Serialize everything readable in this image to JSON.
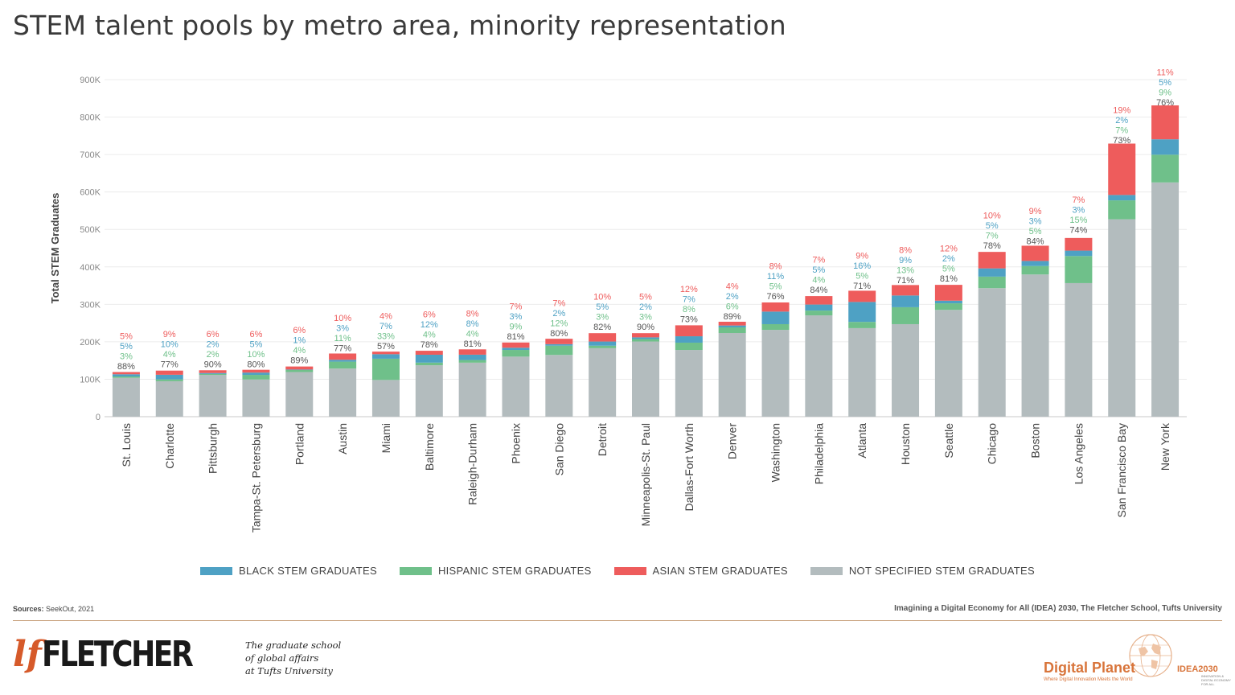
{
  "title": "STEM talent pools by metro area, minority representation",
  "legend": [
    {
      "label": "BLACK STEM GRADUATES",
      "color": "#4ea1c4"
    },
    {
      "label": "HISPANIC STEM GRADUATES",
      "color": "#6fc08a"
    },
    {
      "label": "ASIAN STEM GRADUATES",
      "color": "#ee5c5c"
    },
    {
      "label": "NOT SPECIFIED STEM GRADUATES",
      "color": "#b3bcbe"
    }
  ],
  "footer": {
    "sources_label": "Sources:",
    "sources_text": "SeekOut, 2021",
    "credit": "Imagining a Digital Economy for All (IDEA) 2030, The Fletcher School, Tufts University",
    "fletcher_mark": "lf",
    "fletcher_name": "FLETCHER",
    "tagline_1": "The graduate school",
    "tagline_2": "of global affairs",
    "tagline_3": "at Tufts University",
    "digital_planet": "Digital Planet",
    "digital_planet_sub": "Where Digital Innovation Meets the World",
    "idea_prefix": "IDEA",
    "idea_year": "2030",
    "idea_sub": "INNOVATION & DIGITAL ECONOMY FOR ALL"
  },
  "chart_data": {
    "type": "bar",
    "stacked": true,
    "ylabel": "Total STEM Graduates",
    "xlabel": "",
    "ylim": [
      0,
      900000
    ],
    "yticks": [
      0,
      100000,
      200000,
      300000,
      400000,
      500000,
      600000,
      700000,
      800000,
      900000
    ],
    "ytick_labels": [
      "0",
      "100K",
      "200K",
      "300K",
      "400K",
      "500K",
      "600K",
      "700K",
      "800K",
      "900K"
    ],
    "grid": true,
    "legend_position": "bottom",
    "categories": [
      "St. Louis",
      "Charlotte",
      "Pittsburgh",
      "Tampa-St. Petersburg",
      "Portland",
      "Austin",
      "Miami",
      "Baltimore",
      "Raleigh-Durham",
      "Phoenix",
      "San Diego",
      "Detroit",
      "Minneapolis-St. Paul",
      "Dallas-Fort Worth",
      "Denver",
      "Washington",
      "Philadelphia",
      "Atlanta",
      "Houston",
      "Seattle",
      "Chicago",
      "Boston",
      "Los Angeles",
      "San Francisco Bay",
      "New York"
    ],
    "totals": [
      118000,
      123000,
      124000,
      124000,
      134000,
      167000,
      172000,
      176000,
      178000,
      198000,
      206000,
      223000,
      223000,
      244000,
      251000,
      305000,
      322000,
      333000,
      348000,
      352000,
      440000,
      452000,
      482000,
      722000,
      823000
    ],
    "series": [
      {
        "name": "NOT SPECIFIED STEM GRADUATES",
        "color": "#b3bcbe",
        "pct_labels": [
          "88%",
          "77%",
          "90%",
          "80%",
          "89%",
          "77%",
          "57%",
          "78%",
          "81%",
          "81%",
          "80%",
          "82%",
          "90%",
          "73%",
          "89%",
          "76%",
          "84%",
          "71%",
          "71%",
          "81%",
          "78%",
          "84%",
          "74%",
          "73%",
          "76%"
        ]
      },
      {
        "name": "HISPANIC STEM GRADUATES",
        "color": "#6fc08a",
        "pct_labels": [
          "3%",
          "4%",
          "2%",
          "10%",
          "4%",
          "11%",
          "33%",
          "4%",
          "4%",
          "9%",
          "12%",
          "3%",
          "3%",
          "8%",
          "6%",
          "5%",
          "4%",
          "5%",
          "13%",
          "5%",
          "7%",
          "5%",
          "15%",
          "7%",
          "9%"
        ]
      },
      {
        "name": "BLACK STEM GRADUATES",
        "color": "#4ea1c4",
        "pct_labels": [
          "5%",
          "10%",
          "2%",
          "5%",
          "1%",
          "3%",
          "7%",
          "12%",
          "8%",
          "3%",
          "2%",
          "5%",
          "2%",
          "7%",
          "2%",
          "11%",
          "5%",
          "16%",
          "9%",
          "2%",
          "5%",
          "3%",
          "3%",
          "2%",
          "5%"
        ]
      },
      {
        "name": "ASIAN STEM GRADUATES",
        "color": "#ee5c5c",
        "pct_labels": [
          "5%",
          "9%",
          "6%",
          "6%",
          "6%",
          "10%",
          "4%",
          "6%",
          "8%",
          "7%",
          "7%",
          "10%",
          "5%",
          "12%",
          "4%",
          "8%",
          "7%",
          "9%",
          "8%",
          "12%",
          "10%",
          "9%",
          "7%",
          "19%",
          "11%"
        ]
      }
    ]
  }
}
